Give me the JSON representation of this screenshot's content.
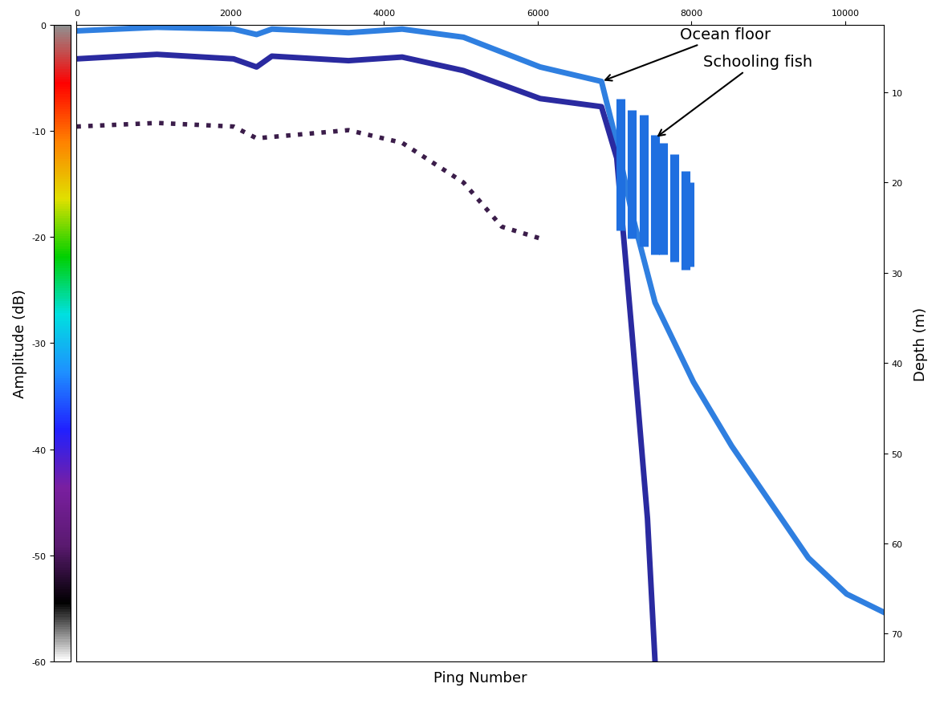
{
  "chart_data": {
    "type": "echogram",
    "x_label": "Ping Number",
    "y_label": "Depth (m)",
    "xlim": [
      0,
      10500
    ],
    "xticks": [
      0,
      2000,
      4000,
      6000,
      8000,
      10000
    ],
    "ylim": [
      73.1,
      2.5
    ],
    "yticks": [
      10,
      20,
      30,
      40,
      50,
      60,
      70
    ],
    "grid": false,
    "series": [
      {
        "color": "#2f7fe0",
        "line_style": "solid",
        "x": [
          0,
          1047,
          2044,
          2343,
          2542,
          3539,
          4237,
          5035,
          6032,
          6830,
          7029,
          7228,
          7527,
          8026,
          8524,
          9023,
          9522,
          10020,
          10498
        ],
        "values": [
          3.2,
          2.8,
          3.0,
          3.6,
          3.0,
          3.4,
          3.0,
          3.9,
          7.2,
          8.8,
          15.6,
          23.5,
          33.3,
          42.1,
          49.2,
          55.4,
          61.6,
          65.6,
          67.6
        ]
      },
      {
        "color": "#2a2aa0",
        "line_style": "solid",
        "x": [
          0,
          1047,
          2044,
          2343,
          2542,
          3539,
          4237,
          5035,
          6032,
          6830,
          7029,
          7228,
          7428,
          7527
        ],
        "values": [
          6.3,
          5.8,
          6.3,
          7.2,
          6.0,
          6.5,
          6.1,
          7.6,
          10.7,
          11.6,
          17.3,
          36.8,
          57.2,
          73.1
        ]
      },
      {
        "color": "#3b1d4a",
        "line_style": "dotted",
        "x": [
          0,
          1047,
          2044,
          2343,
          3539,
          4237,
          5035,
          5534,
          6032
        ],
        "values": [
          13.8,
          13.4,
          13.8,
          15.1,
          14.2,
          15.6,
          20.0,
          24.9,
          26.2
        ]
      }
    ],
    "schools": {
      "color": "#1f6fe0",
      "x": [
        7079,
        7228,
        7378,
        7527,
        7627,
        7777,
        7926,
        7976
      ],
      "top": [
        10.7,
        12.0,
        12.5,
        14.7,
        15.6,
        16.9,
        18.7,
        20.0
      ],
      "bottom": [
        25.3,
        26.2,
        27.1,
        28.0,
        28.0,
        28.8,
        29.7,
        29.3
      ]
    },
    "annotations": [
      {
        "text": "Ocean floor",
        "x": 6830,
        "y": 8.8,
        "text_x": 7850,
        "text_y": 3.6
      },
      {
        "text": "Schooling fish",
        "x": 7527,
        "y": 15.1,
        "text_x": 8150,
        "text_y": 6.6
      }
    ],
    "colorbar": {
      "label": "Amplitude (dB)",
      "range": [
        -60,
        0
      ],
      "ticks": [
        0,
        -10,
        -20,
        -30,
        -40,
        -50,
        -60
      ]
    }
  }
}
